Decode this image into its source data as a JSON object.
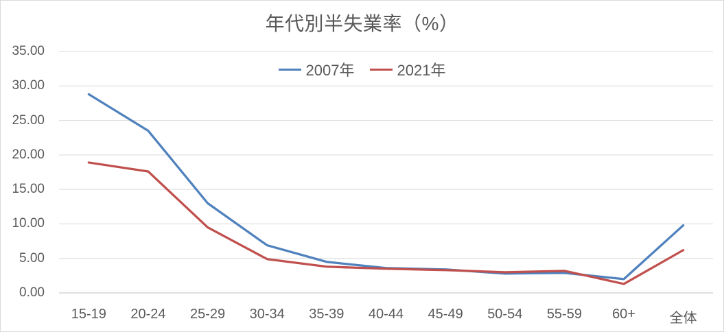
{
  "chart_data": {
    "type": "line",
    "title": "年代別半失業率（%）",
    "categories": [
      "15-19",
      "20-24",
      "25-29",
      "30-34",
      "35-39",
      "40-44",
      "45-49",
      "50-54",
      "55-59",
      "60+",
      "全体"
    ],
    "series": [
      {
        "name": "2007年",
        "color": "#4F81BD",
        "values": [
          28.8,
          23.5,
          13.0,
          6.9,
          4.5,
          3.6,
          3.4,
          2.8,
          2.9,
          2.0,
          9.8
        ]
      },
      {
        "name": "2021年",
        "color": "#C0504D",
        "values": [
          18.9,
          17.6,
          9.5,
          4.9,
          3.8,
          3.5,
          3.3,
          3.0,
          3.2,
          1.3,
          6.2
        ]
      }
    ],
    "ylim": [
      0,
      35
    ],
    "y_step": 5,
    "y_tick_labels": [
      "0.00",
      "5.00",
      "10.00",
      "15.00",
      "20.00",
      "25.00",
      "30.00",
      "35.00"
    ],
    "xlabel": "",
    "ylabel": "",
    "grid": true,
    "legend_position": "top-center",
    "colors": {
      "gridline": "#d9d9d9",
      "axis_line": "#bfbfbf",
      "text": "#595959",
      "background": "#ffffff"
    }
  }
}
